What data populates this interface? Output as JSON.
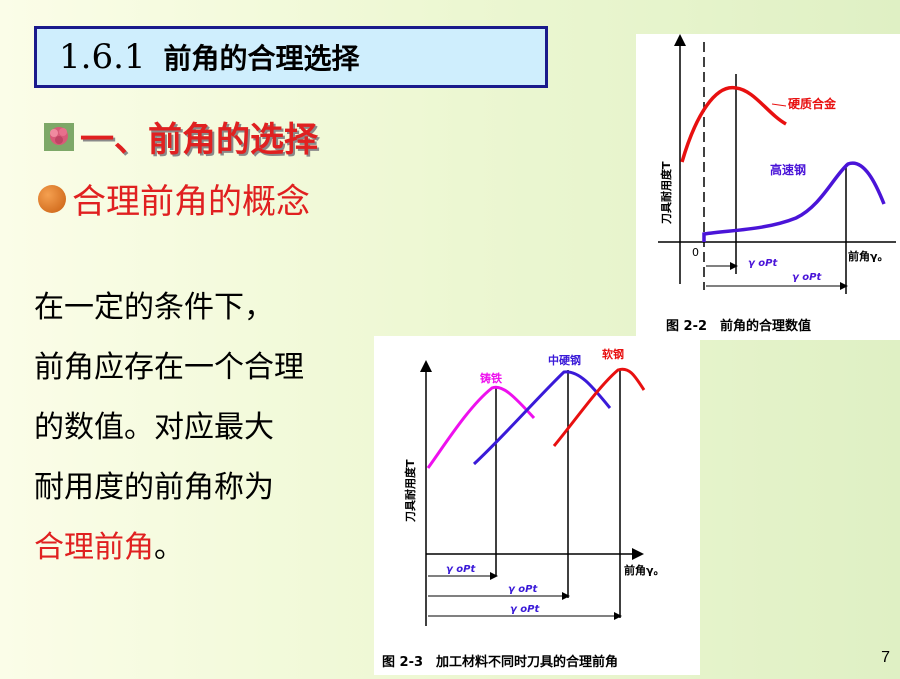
{
  "title": {
    "number": "1.6.1",
    "text": "前角的合理选择"
  },
  "section": {
    "icon": "flower-icon",
    "text": "一、前角的选择"
  },
  "bullet": {
    "icon": "orange-bullet-icon",
    "text": "合理前角的概念"
  },
  "body": {
    "line1": "在一定的条件下，",
    "line2": "前角应存在一个合理",
    "line3": "的数值。对应最大",
    "line4": "耐用度的前角称为",
    "line5_red": "合理前角",
    "line5_end": "。"
  },
  "figure1": {
    "caption": "图 2-2　前角的合理数值",
    "ylabel": "刀具耐用度T",
    "xlabel": "前角γ。",
    "origin": "0",
    "curve1_label": "硬质合金",
    "curve2_label": "高速钢",
    "opt1": "γ oPt",
    "opt2": "γ oPt",
    "colors": {
      "curve1": "#e81010",
      "curve2": "#4a14d8"
    }
  },
  "figure2": {
    "caption": "图 2-3　加工材料不同时刀具的合理前角",
    "ylabel": "刀具耐用度T",
    "xlabel": "前角γ。",
    "curve1_label": "铸铁",
    "curve2_label": "中硬钢",
    "curve3_label": "软钢",
    "opt1": "γ oPt",
    "opt2": "γ oPt",
    "opt3": "γ oPt",
    "colors": {
      "curve1": "#ee10ee",
      "curve2": "#3a1ad8",
      "curve3": "#e81010",
      "labels1": "#ee10ee",
      "labels2": "#3a1ad8",
      "labels3": "#e81010",
      "opt": "#3a1ad8"
    }
  },
  "page_number": "7"
}
